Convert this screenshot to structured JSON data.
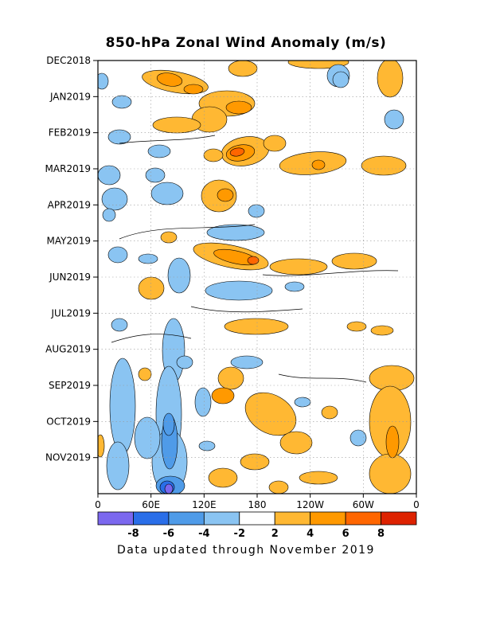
{
  "chart_data": {
    "type": "heatmap",
    "title": "850-hPa Zonal Wind Anomaly (m/s)",
    "footer": "Data updated through November 2019",
    "y_ticks": [
      "DEC2018",
      "JAN2019",
      "FEB2019",
      "MAR2019",
      "APR2019",
      "MAY2019",
      "JUN2019",
      "JUL2019",
      "AUG2019",
      "SEP2019",
      "OCT2019",
      "NOV2019"
    ],
    "y_range": [
      "DEC2018",
      "NOV2019"
    ],
    "x_ticks": [
      "0",
      "60E",
      "120E",
      "180",
      "120W",
      "60W",
      "0"
    ],
    "x_range_deg": [
      0,
      360
    ],
    "color_scale": {
      "colors": [
        "#7b68ee",
        "#2a6ee8",
        "#4f9be8",
        "#8ac4f2",
        "#ffffff",
        "#ffb833",
        "#ff9900",
        "#ff6600",
        "#dd2200"
      ],
      "tick_labels": [
        "-8",
        "-6",
        "-4",
        "-2",
        "2",
        "4",
        "6",
        "8"
      ],
      "contour_interval": 2,
      "unit": "m/s"
    },
    "grid": "dotted"
  }
}
